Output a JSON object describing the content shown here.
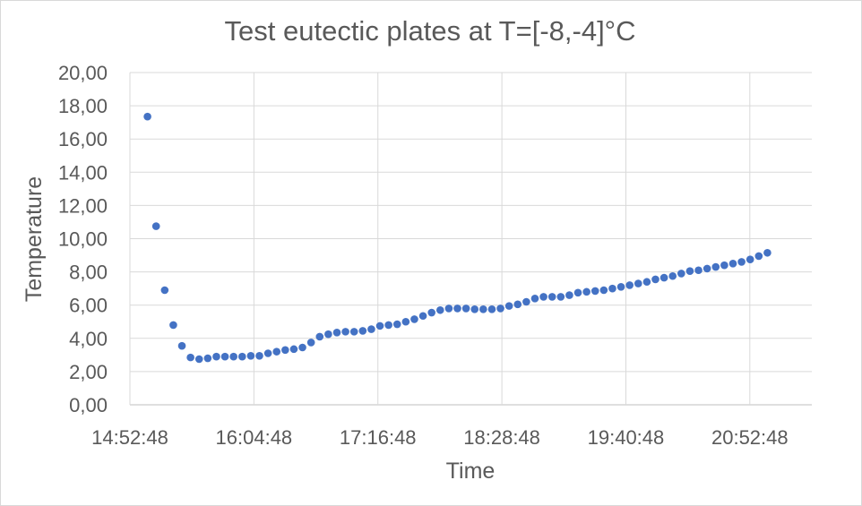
{
  "chart_data": {
    "type": "scatter",
    "title": "Test eutectic plates at T=[-8,-4]°C",
    "xlabel": "Time",
    "ylabel": "Temperature",
    "xlim": [
      "14:52:48",
      "21:28:48"
    ],
    "ylim": [
      0,
      20
    ],
    "x_ticks": [
      "14:52:48",
      "16:04:48",
      "17:16:48",
      "18:28:48",
      "19:40:48",
      "20:52:48"
    ],
    "y_ticks": [
      "0,00",
      "2,00",
      "4,00",
      "6,00",
      "8,00",
      "10,00",
      "12,00",
      "14,00",
      "16,00",
      "18,00",
      "20,00"
    ],
    "grid": true,
    "legend": "none",
    "marker_color": "#4472c4",
    "series": [
      {
        "x": [
          "15:03:00",
          "15:08:00",
          "15:13:00",
          "15:18:00",
          "15:23:00",
          "15:28:00",
          "15:33:00",
          "15:38:00",
          "15:43:00",
          "15:48:00",
          "15:53:00",
          "15:58:00",
          "16:03:00",
          "16:08:00",
          "16:13:00",
          "16:18:00",
          "16:23:00",
          "16:28:00",
          "16:33:00",
          "16:38:00",
          "16:43:00",
          "16:48:00",
          "16:53:00",
          "16:58:00",
          "17:03:00",
          "17:08:00",
          "17:13:00",
          "17:18:00",
          "17:23:00",
          "17:28:00",
          "17:33:00",
          "17:38:00",
          "17:43:00",
          "17:48:00",
          "17:53:00",
          "17:58:00",
          "18:03:00",
          "18:08:00",
          "18:13:00",
          "18:18:00",
          "18:23:00",
          "18:28:00",
          "18:33:00",
          "18:38:00",
          "18:43:00",
          "18:48:00",
          "18:53:00",
          "18:58:00",
          "19:03:00",
          "19:08:00",
          "19:13:00",
          "19:18:00",
          "19:23:00",
          "19:28:00",
          "19:33:00",
          "19:38:00",
          "19:43:00",
          "19:48:00",
          "19:53:00",
          "19:58:00",
          "20:03:00",
          "20:08:00",
          "20:13:00",
          "20:18:00",
          "20:23:00",
          "20:28:00",
          "20:33:00",
          "20:38:00",
          "20:43:00",
          "20:48:00",
          "20:53:00",
          "20:58:00",
          "21:03:00"
        ],
        "y": [
          17.35,
          10.75,
          6.9,
          4.8,
          3.55,
          2.85,
          2.75,
          2.8,
          2.9,
          2.9,
          2.9,
          2.9,
          2.95,
          2.95,
          3.1,
          3.2,
          3.3,
          3.35,
          3.45,
          3.75,
          4.1,
          4.25,
          4.35,
          4.4,
          4.4,
          4.45,
          4.55,
          4.75,
          4.8,
          4.85,
          5.0,
          5.15,
          5.35,
          5.55,
          5.7,
          5.8,
          5.8,
          5.8,
          5.75,
          5.75,
          5.75,
          5.8,
          5.95,
          6.05,
          6.2,
          6.4,
          6.5,
          6.5,
          6.5,
          6.6,
          6.75,
          6.8,
          6.85,
          6.9,
          7.0,
          7.1,
          7.2,
          7.3,
          7.4,
          7.55,
          7.65,
          7.75,
          7.9,
          8.05,
          8.1,
          8.2,
          8.3,
          8.4,
          8.5,
          8.6,
          8.75,
          8.95,
          9.15
        ]
      }
    ]
  }
}
